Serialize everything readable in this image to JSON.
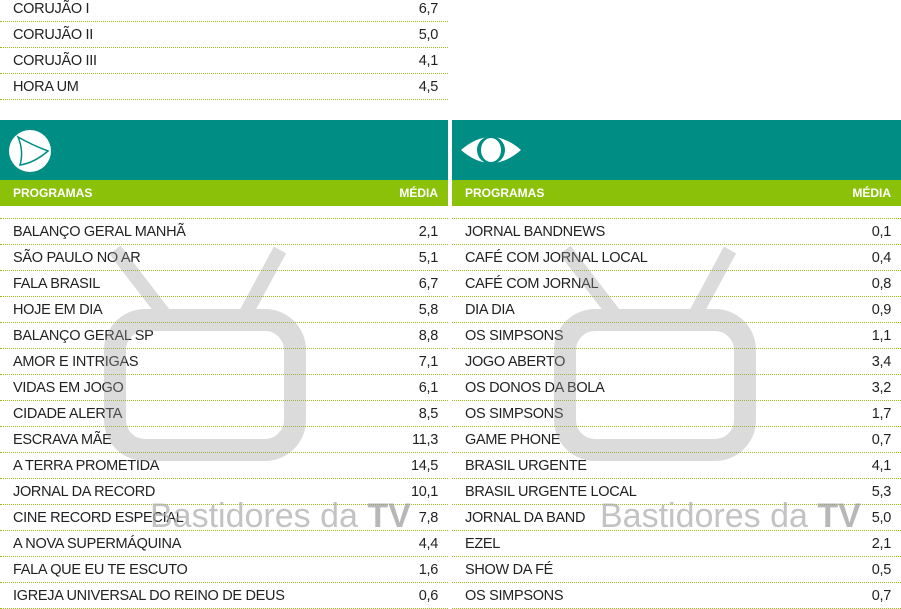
{
  "top_table": [
    {
      "program": "CORUJÃO I",
      "media": "6,7"
    },
    {
      "program": "CORUJÃO II",
      "media": "5,0"
    },
    {
      "program": "CORUJÃO III",
      "media": "4,1"
    },
    {
      "program": "HORA UM",
      "media": "4,5"
    }
  ],
  "colors": {
    "header": "#008d84",
    "subheader": "#8cc10a"
  },
  "watermark": {
    "text": "Bastidores da",
    "bold": "TV"
  },
  "panels": [
    {
      "logo_icon": "record-logo-icon",
      "col_program": "PROGRAMAS",
      "col_media": "MÉDIA",
      "rows": [
        {
          "program": "BALANÇO GERAL MANHÃ",
          "media": "2,1"
        },
        {
          "program": "SÃO PAULO NO AR",
          "media": "5,1"
        },
        {
          "program": "FALA BRASIL",
          "media": "6,7"
        },
        {
          "program": "HOJE EM DIA",
          "media": "5,8"
        },
        {
          "program": "BALANÇO GERAL SP",
          "media": "8,8"
        },
        {
          "program": "AMOR E INTRIGAS",
          "media": "7,1"
        },
        {
          "program": "VIDAS EM JOGO",
          "media": "6,1"
        },
        {
          "program": "CIDADE ALERTA",
          "media": "8,5"
        },
        {
          "program": "ESCRAVA MÃE",
          "media": "11,3"
        },
        {
          "program": "A TERRA PROMETIDA",
          "media": "14,5"
        },
        {
          "program": "JORNAL DA RECORD",
          "media": "10,1"
        },
        {
          "program": "CINE RECORD ESPECIAL",
          "media": "7,8"
        },
        {
          "program": "A NOVA SUPERMÁQUINA",
          "media": "4,4"
        },
        {
          "program": "FALA QUE EU TE ESCUTO",
          "media": "1,6"
        },
        {
          "program": "IGREJA UNIVERSAL DO REINO DE DEUS",
          "media": "0,6"
        }
      ]
    },
    {
      "logo_icon": "band-logo-icon",
      "col_program": "PROGRAMAS",
      "col_media": "MÉDIA",
      "rows": [
        {
          "program": "JORNAL BANDNEWS",
          "media": "0,1"
        },
        {
          "program": "CAFÉ COM JORNAL LOCAL",
          "media": "0,4"
        },
        {
          "program": "CAFÉ COM JORNAL",
          "media": "0,8"
        },
        {
          "program": "DIA DIA",
          "media": "0,9"
        },
        {
          "program": "OS SIMPSONS",
          "media": "1,1"
        },
        {
          "program": "JOGO ABERTO",
          "media": "3,4"
        },
        {
          "program": "OS DONOS DA BOLA",
          "media": "3,2"
        },
        {
          "program": "OS SIMPSONS",
          "media": "1,7"
        },
        {
          "program": "GAME PHONE",
          "media": "0,7"
        },
        {
          "program": "BRASIL URGENTE",
          "media": "4,1"
        },
        {
          "program": "BRASIL URGENTE LOCAL",
          "media": "5,3"
        },
        {
          "program": "JORNAL DA BAND",
          "media": "5,0"
        },
        {
          "program": "EZEL",
          "media": "2,1"
        },
        {
          "program": "SHOW DA FÉ",
          "media": "0,5"
        },
        {
          "program": "OS SIMPSONS",
          "media": "0,7"
        }
      ]
    }
  ]
}
